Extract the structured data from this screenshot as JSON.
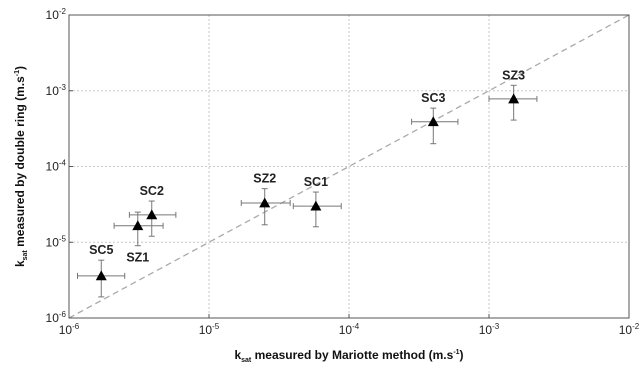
{
  "chart_data": {
    "type": "scatter",
    "scale": {
      "x": "log",
      "y": "log"
    },
    "xlim": [
      1e-06,
      0.01
    ],
    "ylim": [
      1e-06,
      0.01
    ],
    "grid": true,
    "reference_line": {
      "style": "dashed",
      "from": [
        1e-06,
        1e-06
      ],
      "to": [
        0.01,
        0.01
      ]
    },
    "xlabel": {
      "prefix": "k",
      "sub": "sat",
      "text": " measured by Mariotte method (m.s",
      "sup": "-1",
      "suffix": ")"
    },
    "ylabel": {
      "prefix": "k",
      "sub": "sat",
      "text": " measured by double ring (m.s",
      "sup": "-1",
      "suffix": ")"
    },
    "x_ticks": [
      {
        "value": 1e-06,
        "base": "10",
        "exp": "-6"
      },
      {
        "value": 1e-05,
        "base": "10",
        "exp": "-5"
      },
      {
        "value": 0.0001,
        "base": "10",
        "exp": "-4"
      },
      {
        "value": 0.001,
        "base": "10",
        "exp": "-3"
      },
      {
        "value": 0.01,
        "base": "10",
        "exp": "-2"
      }
    ],
    "y_ticks": [
      {
        "value": 1e-06,
        "base": "10",
        "exp": "-6"
      },
      {
        "value": 1e-05,
        "base": "10",
        "exp": "-5"
      },
      {
        "value": 0.0001,
        "base": "10",
        "exp": "-4"
      },
      {
        "value": 0.001,
        "base": "10",
        "exp": "-3"
      },
      {
        "value": 0.01,
        "base": "10",
        "exp": "-2"
      }
    ],
    "points": [
      {
        "label": "SC5",
        "x": 1.7e-06,
        "y": 3.6e-06,
        "xerr": [
          1.15e-06,
          2.5e-06
        ],
        "yerr": [
          1.9e-06,
          5.8e-06
        ],
        "label_pos": "above"
      },
      {
        "label": "SZ1",
        "x": 3.1e-06,
        "y": 1.65e-05,
        "xerr": [
          2.1e-06,
          4.7e-06
        ],
        "yerr": [
          9e-06,
          2.5e-05
        ],
        "label_pos": "below"
      },
      {
        "label": "SC2",
        "x": 3.9e-06,
        "y": 2.3e-05,
        "xerr": [
          2.7e-06,
          5.8e-06
        ],
        "yerr": [
          1.2e-05,
          3.5e-05
        ],
        "label_pos": "above"
      },
      {
        "label": "SZ2",
        "x": 2.5e-05,
        "y": 3.3e-05,
        "xerr": [
          1.7e-05,
          3.8e-05
        ],
        "yerr": [
          1.7e-05,
          5.1e-05
        ],
        "label_pos": "above"
      },
      {
        "label": "SC1",
        "x": 5.8e-05,
        "y": 3e-05,
        "xerr": [
          4e-05,
          8.8e-05
        ],
        "yerr": [
          1.6e-05,
          4.6e-05
        ],
        "label_pos": "above"
      },
      {
        "label": "SC3",
        "x": 0.0004,
        "y": 0.00039,
        "xerr": [
          0.00028,
          0.0006
        ],
        "yerr": [
          0.0002,
          0.00059
        ],
        "label_pos": "above"
      },
      {
        "label": "SZ3",
        "x": 0.0015,
        "y": 0.00078,
        "xerr": [
          0.001,
          0.0022
        ],
        "yerr": [
          0.00041,
          0.00118
        ],
        "label_pos": "above"
      }
    ],
    "colors": {
      "marker": "#000000",
      "errorbar": "#777777",
      "grid": "#c8c8c8",
      "reference": "#aaaaaa",
      "frame": "#555555"
    }
  }
}
